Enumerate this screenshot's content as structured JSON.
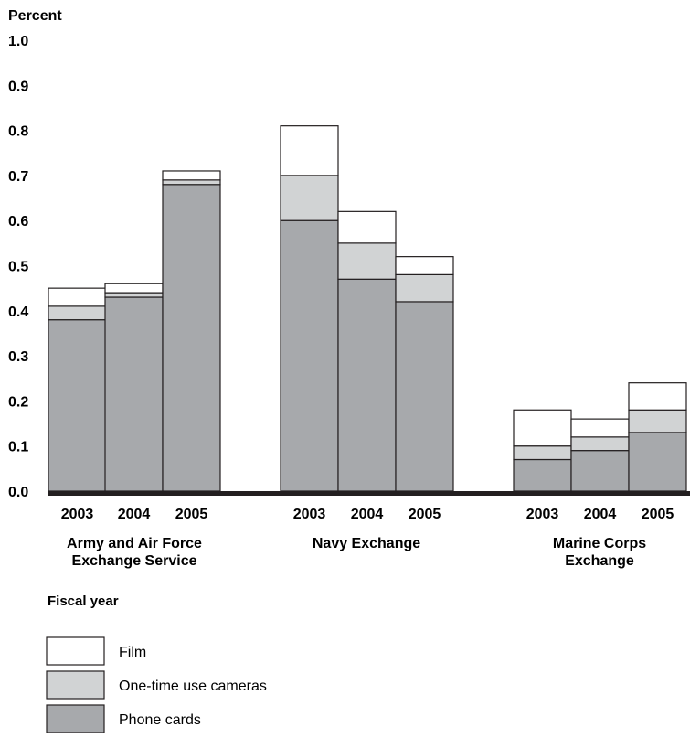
{
  "chart_data": {
    "type": "bar",
    "stacked": true,
    "ylabel": "Percent",
    "xlabel": "Fiscal year",
    "ylim": [
      0,
      1.0
    ],
    "yticks": [
      "1.0",
      "0.9",
      "0.8",
      "0.7",
      "0.6",
      "0.5",
      "0.4",
      "0.3",
      "0.2",
      "0.1",
      "0.0"
    ],
    "groups": [
      {
        "name": "Army and Air Force Exchange Service",
        "lines": [
          "Army and Air Force",
          "Exchange Service"
        ]
      },
      {
        "name": "Navy Exchange",
        "lines": [
          "Navy Exchange"
        ]
      },
      {
        "name": "Marine Corps Exchange",
        "lines": [
          "Marine Corps",
          "Exchange"
        ]
      }
    ],
    "categories": [
      "2003",
      "2004",
      "2005",
      "2003",
      "2004",
      "2005",
      "2003",
      "2004",
      "2005"
    ],
    "series": [
      {
        "name": "Phone cards",
        "color": "#a7a9ac",
        "values": [
          0.38,
          0.43,
          0.68,
          0.6,
          0.47,
          0.42,
          0.07,
          0.09,
          0.13
        ]
      },
      {
        "name": "One-time use cameras",
        "color": "#d1d3d4",
        "values": [
          0.03,
          0.01,
          0.01,
          0.1,
          0.08,
          0.06,
          0.03,
          0.03,
          0.05
        ]
      },
      {
        "name": "Film",
        "color": "#ffffff",
        "values": [
          0.04,
          0.02,
          0.02,
          0.11,
          0.07,
          0.04,
          0.08,
          0.04,
          0.06
        ]
      }
    ],
    "legend_position": "bottom-left",
    "legend_order": [
      "Film",
      "One-time use cameras",
      "Phone cards"
    ]
  }
}
